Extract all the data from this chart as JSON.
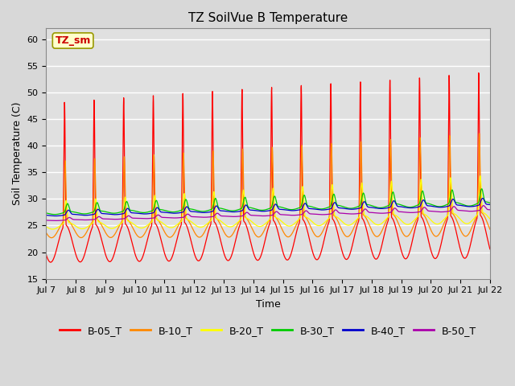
{
  "title": "TZ SoilVue B Temperature",
  "xlabel": "Time",
  "ylabel": "Soil Temperature (C)",
  "ylim": [
    15,
    62
  ],
  "yticks": [
    15,
    20,
    25,
    30,
    35,
    40,
    45,
    50,
    55,
    60
  ],
  "x_tick_labels": [
    "Jul 7",
    "Jul 8",
    "Jul 9",
    "Jul 10",
    "Jul 11",
    "Jul 12",
    "Jul 13",
    "Jul 14",
    "Jul 15",
    "Jul 16",
    "Jul 17",
    "Jul 18",
    "Jul 19",
    "Jul 20",
    "Jul 21",
    "Jul 22"
  ],
  "annotation_text": "TZ_sm",
  "annotation_bg": "#ffffcc",
  "annotation_border": "#999900",
  "annotation_text_color": "#cc0000",
  "series_colors": [
    "#ff0000",
    "#ff8800",
    "#ffff00",
    "#00cc00",
    "#0000cc",
    "#aa00aa"
  ],
  "series_labels": [
    "B-05_T",
    "B-10_T",
    "B-20_T",
    "B-30_T",
    "B-40_T",
    "B-50_T"
  ],
  "fig_bg": "#d8d8d8",
  "plot_bg": "#e0e0e0",
  "grid_color": "#ffffff",
  "title_fontsize": 11,
  "axis_label_fontsize": 9,
  "tick_fontsize": 8,
  "legend_fontsize": 9
}
